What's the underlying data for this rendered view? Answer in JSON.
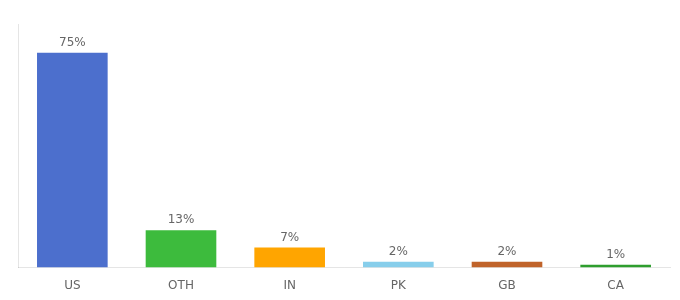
{
  "chart_data": {
    "type": "bar",
    "categories": [
      "US",
      "OTH",
      "IN",
      "PK",
      "GB",
      "CA"
    ],
    "values": [
      75,
      13,
      7,
      2,
      2,
      1
    ],
    "value_labels": [
      "75%",
      "13%",
      "7%",
      "2%",
      "2%",
      "1%"
    ],
    "colors": [
      "#4c6fcd",
      "#3dbb3d",
      "#ffa500",
      "#87ceeb",
      "#c0632a",
      "#2e9e2e"
    ],
    "data_labels": true,
    "ylim": [
      0,
      85
    ],
    "grid": false,
    "tick_labels": "x"
  }
}
